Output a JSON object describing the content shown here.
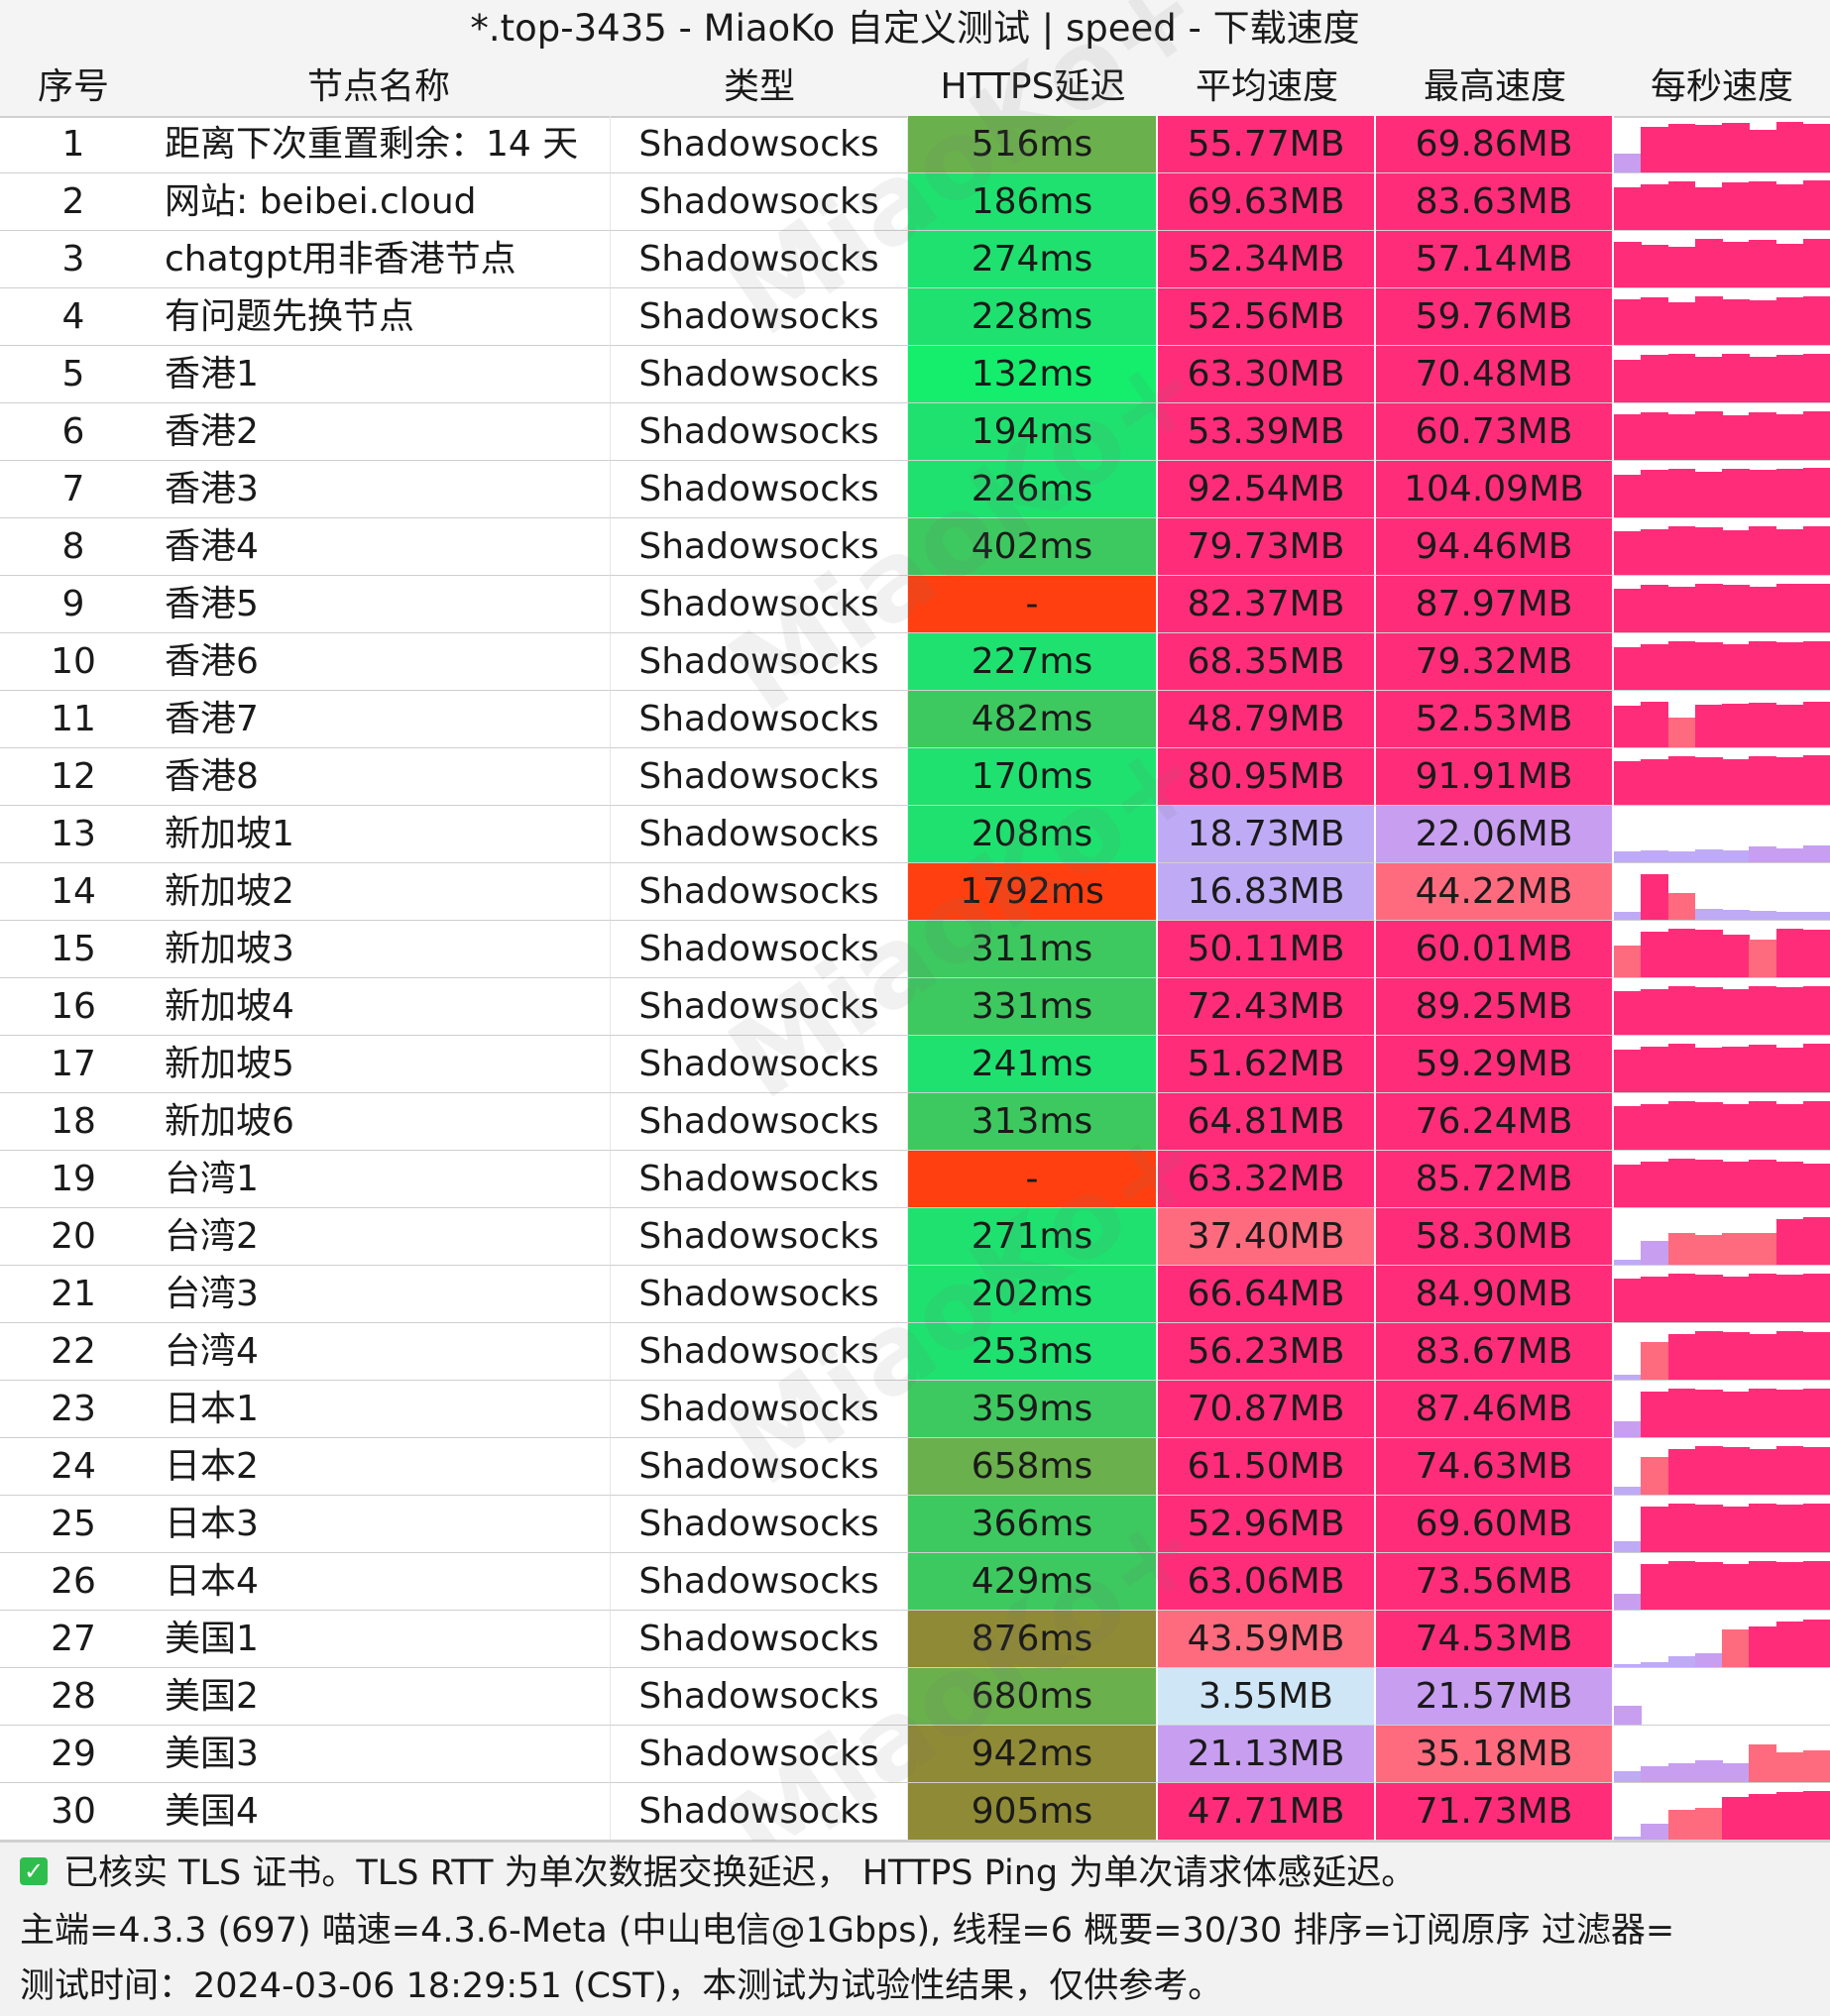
{
  "title": "*.top-3435 - MiaoKo 自定义测试 | speed - 下载速度",
  "watermark": "MiaoKo+",
  "columns": [
    "序号",
    "节点名称",
    "类型",
    "HTTPS延迟",
    "平均速度",
    "最高速度",
    "每秒速度"
  ],
  "colors": {
    "latency_good": "#1fe16f",
    "latency_ok": "#3dc95f",
    "latency_mid": "#6ab04c",
    "latency_slow": "#8f8a35",
    "latency_fail": "#ff3f0f",
    "speed_high": "#ff2d79",
    "speed_mid": "#ff6b7e",
    "speed_low": "#c89ef0",
    "speed_lower": "#bfaaf5",
    "speed_lowest": "#cfe6f7"
  },
  "rows": [
    {
      "idx": "1",
      "name": "距离下次重置剩余：14 天",
      "type": "Shadowsocks",
      "latency": "516ms",
      "avg": "55.77MB",
      "max": "69.86MB",
      "lat_color": "#6ab04c",
      "avg_color": "#ff2d79",
      "max_color": "#ff2d79",
      "spark": [
        0.35,
        0.85,
        0.9,
        0.88,
        0.92,
        0.8,
        0.95,
        0.9
      ]
    },
    {
      "idx": "2",
      "name": "网站: beibei.cloud",
      "type": "Shadowsocks",
      "latency": "186ms",
      "avg": "69.63MB",
      "max": "83.63MB",
      "lat_color": "#1fe16f",
      "avg_color": "#ff2d79",
      "max_color": "#ff2d79",
      "spark": [
        0.8,
        0.85,
        0.9,
        0.8,
        0.88,
        0.9,
        0.86,
        0.92
      ]
    },
    {
      "idx": "3",
      "name": "chatgpt用非香港节点",
      "type": "Shadowsocks",
      "latency": "274ms",
      "avg": "52.34MB",
      "max": "57.14MB",
      "lat_color": "#1fe16f",
      "avg_color": "#ff2d79",
      "max_color": "#ff2d79",
      "spark": [
        0.85,
        0.8,
        0.75,
        0.9,
        0.85,
        0.88,
        0.82,
        0.9
      ]
    },
    {
      "idx": "4",
      "name": "有问题先换节点",
      "type": "Shadowsocks",
      "latency": "228ms",
      "avg": "52.56MB",
      "max": "59.76MB",
      "lat_color": "#1fe16f",
      "avg_color": "#ff2d79",
      "max_color": "#ff2d79",
      "spark": [
        0.85,
        0.88,
        0.8,
        0.9,
        0.86,
        0.84,
        0.88,
        0.9
      ]
    },
    {
      "idx": "5",
      "name": "香港1",
      "type": "Shadowsocks",
      "latency": "132ms",
      "avg": "63.30MB",
      "max": "70.48MB",
      "lat_color": "#14ee6c",
      "avg_color": "#ff2d79",
      "max_color": "#ff2d79",
      "spark": [
        0.8,
        0.88,
        0.9,
        0.85,
        0.9,
        0.86,
        0.88,
        0.9
      ]
    },
    {
      "idx": "6",
      "name": "香港2",
      "type": "Shadowsocks",
      "latency": "194ms",
      "avg": "53.39MB",
      "max": "60.73MB",
      "lat_color": "#1fe16f",
      "avg_color": "#ff2d79",
      "max_color": "#ff2d79",
      "spark": [
        0.85,
        0.88,
        0.86,
        0.9,
        0.84,
        0.88,
        0.86,
        0.9
      ]
    },
    {
      "idx": "7",
      "name": "香港3",
      "type": "Shadowsocks",
      "latency": "226ms",
      "avg": "92.54MB",
      "max": "104.09MB",
      "lat_color": "#1fe16f",
      "avg_color": "#ff2d79",
      "max_color": "#ff2d79",
      "spark": [
        0.8,
        0.88,
        0.9,
        0.86,
        0.9,
        0.88,
        0.9,
        0.92
      ]
    },
    {
      "idx": "8",
      "name": "香港4",
      "type": "Shadowsocks",
      "latency": "402ms",
      "avg": "79.73MB",
      "max": "94.46MB",
      "lat_color": "#3dc95f",
      "avg_color": "#ff2d79",
      "max_color": "#ff2d79",
      "spark": [
        0.82,
        0.86,
        0.9,
        0.88,
        0.84,
        0.9,
        0.86,
        0.9
      ]
    },
    {
      "idx": "9",
      "name": "香港5",
      "type": "Shadowsocks",
      "latency": "-",
      "avg": "82.37MB",
      "max": "87.97MB",
      "lat_color": "#ff3f0f",
      "avg_color": "#ff2d79",
      "max_color": "#ff2d79",
      "spark": [
        0.82,
        0.88,
        0.86,
        0.9,
        0.88,
        0.86,
        0.9,
        0.9
      ]
    },
    {
      "idx": "10",
      "name": "香港6",
      "type": "Shadowsocks",
      "latency": "227ms",
      "avg": "68.35MB",
      "max": "79.32MB",
      "lat_color": "#1fe16f",
      "avg_color": "#ff2d79",
      "max_color": "#ff2d79",
      "spark": [
        0.8,
        0.86,
        0.9,
        0.88,
        0.86,
        0.9,
        0.88,
        0.9
      ]
    },
    {
      "idx": "11",
      "name": "香港7",
      "type": "Shadowsocks",
      "latency": "482ms",
      "avg": "48.79MB",
      "max": "52.53MB",
      "lat_color": "#3dc95f",
      "avg_color": "#ff2d79",
      "max_color": "#ff2d79",
      "spark": [
        0.78,
        0.85,
        0.55,
        0.8,
        0.82,
        0.84,
        0.8,
        0.86
      ]
    },
    {
      "idx": "12",
      "name": "香港8",
      "type": "Shadowsocks",
      "latency": "170ms",
      "avg": "80.95MB",
      "max": "91.91MB",
      "lat_color": "#1fe16f",
      "avg_color": "#ff2d79",
      "max_color": "#ff2d79",
      "spark": [
        0.82,
        0.86,
        0.9,
        0.88,
        0.86,
        0.9,
        0.88,
        0.92
      ]
    },
    {
      "idx": "13",
      "name": "新加坡1",
      "type": "Shadowsocks",
      "latency": "208ms",
      "avg": "18.73MB",
      "max": "22.06MB",
      "lat_color": "#1fe16f",
      "avg_color": "#bfaaf5",
      "max_color": "#c89ef0",
      "spark": [
        0.2,
        0.22,
        0.2,
        0.24,
        0.22,
        0.3,
        0.26,
        0.32
      ]
    },
    {
      "idx": "14",
      "name": "新加坡2",
      "type": "Shadowsocks",
      "latency": "1792ms",
      "avg": "16.83MB",
      "max": "44.22MB",
      "lat_color": "#ff3f0f",
      "avg_color": "#bfaaf5",
      "max_color": "#ff6b7e",
      "spark": [
        0.15,
        0.85,
        0.5,
        0.2,
        0.18,
        0.16,
        0.15,
        0.14
      ]
    },
    {
      "idx": "15",
      "name": "新加坡3",
      "type": "Shadowsocks",
      "latency": "311ms",
      "avg": "50.11MB",
      "max": "60.01MB",
      "lat_color": "#3dc95f",
      "avg_color": "#ff2d79",
      "max_color": "#ff2d79",
      "spark": [
        0.6,
        0.86,
        0.9,
        0.88,
        0.8,
        0.7,
        0.9,
        0.88
      ]
    },
    {
      "idx": "16",
      "name": "新加坡4",
      "type": "Shadowsocks",
      "latency": "331ms",
      "avg": "72.43MB",
      "max": "89.25MB",
      "lat_color": "#3dc95f",
      "avg_color": "#ff2d79",
      "max_color": "#ff2d79",
      "spark": [
        0.82,
        0.86,
        0.9,
        0.88,
        0.86,
        0.9,
        0.88,
        0.9
      ]
    },
    {
      "idx": "17",
      "name": "新加坡5",
      "type": "Shadowsocks",
      "latency": "241ms",
      "avg": "51.62MB",
      "max": "59.29MB",
      "lat_color": "#1fe16f",
      "avg_color": "#ff2d79",
      "max_color": "#ff2d79",
      "spark": [
        0.8,
        0.86,
        0.9,
        0.84,
        0.86,
        0.88,
        0.84,
        0.9
      ]
    },
    {
      "idx": "18",
      "name": "新加坡6",
      "type": "Shadowsocks",
      "latency": "313ms",
      "avg": "64.81MB",
      "max": "76.24MB",
      "lat_color": "#3dc95f",
      "avg_color": "#ff2d79",
      "max_color": "#ff2d79",
      "spark": [
        0.82,
        0.86,
        0.9,
        0.88,
        0.86,
        0.9,
        0.86,
        0.9
      ]
    },
    {
      "idx": "19",
      "name": "台湾1",
      "type": "Shadowsocks",
      "latency": "-",
      "avg": "63.32MB",
      "max": "85.72MB",
      "lat_color": "#ff3f0f",
      "avg_color": "#ff2d79",
      "max_color": "#ff2d79",
      "spark": [
        0.8,
        0.86,
        0.9,
        0.88,
        0.86,
        0.88,
        0.86,
        0.82
      ]
    },
    {
      "idx": "20",
      "name": "台湾2",
      "type": "Shadowsocks",
      "latency": "271ms",
      "avg": "37.40MB",
      "max": "58.30MB",
      "lat_color": "#1fe16f",
      "avg_color": "#ff6b7e",
      "max_color": "#ff2d79",
      "spark": [
        0.1,
        0.45,
        0.6,
        0.55,
        0.6,
        0.6,
        0.85,
        0.88
      ]
    },
    {
      "idx": "21",
      "name": "台湾3",
      "type": "Shadowsocks",
      "latency": "202ms",
      "avg": "66.64MB",
      "max": "84.90MB",
      "lat_color": "#1fe16f",
      "avg_color": "#ff2d79",
      "max_color": "#ff2d79",
      "spark": [
        0.82,
        0.86,
        0.9,
        0.88,
        0.86,
        0.9,
        0.88,
        0.9
      ]
    },
    {
      "idx": "22",
      "name": "台湾4",
      "type": "Shadowsocks",
      "latency": "253ms",
      "avg": "56.23MB",
      "max": "83.67MB",
      "lat_color": "#1fe16f",
      "avg_color": "#ff2d79",
      "max_color": "#ff2d79",
      "spark": [
        0.1,
        0.7,
        0.85,
        0.9,
        0.88,
        0.86,
        0.9,
        0.88
      ]
    },
    {
      "idx": "23",
      "name": "日本1",
      "type": "Shadowsocks",
      "latency": "359ms",
      "avg": "70.87MB",
      "max": "87.46MB",
      "lat_color": "#3dc95f",
      "avg_color": "#ff2d79",
      "max_color": "#ff2d79",
      "spark": [
        0.3,
        0.86,
        0.9,
        0.88,
        0.86,
        0.9,
        0.88,
        0.9
      ]
    },
    {
      "idx": "24",
      "name": "日本2",
      "type": "Shadowsocks",
      "latency": "658ms",
      "avg": "61.50MB",
      "max": "74.63MB",
      "lat_color": "#6ab04c",
      "avg_color": "#ff2d79",
      "max_color": "#ff2d79",
      "spark": [
        0.15,
        0.7,
        0.85,
        0.9,
        0.88,
        0.86,
        0.9,
        0.88
      ]
    },
    {
      "idx": "25",
      "name": "日本3",
      "type": "Shadowsocks",
      "latency": "366ms",
      "avg": "52.96MB",
      "max": "69.60MB",
      "lat_color": "#3dc95f",
      "avg_color": "#ff2d79",
      "max_color": "#ff2d79",
      "spark": [
        0.2,
        0.86,
        0.9,
        0.88,
        0.86,
        0.9,
        0.88,
        0.9
      ]
    },
    {
      "idx": "26",
      "name": "日本4",
      "type": "Shadowsocks",
      "latency": "429ms",
      "avg": "63.06MB",
      "max": "73.56MB",
      "lat_color": "#3dc95f",
      "avg_color": "#ff2d79",
      "max_color": "#ff2d79",
      "spark": [
        0.3,
        0.86,
        0.9,
        0.88,
        0.86,
        0.9,
        0.88,
        0.9
      ]
    },
    {
      "idx": "27",
      "name": "美国1",
      "type": "Shadowsocks",
      "latency": "876ms",
      "avg": "43.59MB",
      "max": "74.53MB",
      "lat_color": "#8f8a35",
      "avg_color": "#ff6b7e",
      "max_color": "#ff2d79",
      "spark": [
        0.05,
        0.1,
        0.2,
        0.25,
        0.7,
        0.75,
        0.85,
        0.88
      ]
    },
    {
      "idx": "28",
      "name": "美国2",
      "type": "Shadowsocks",
      "latency": "680ms",
      "avg": "3.55MB",
      "max": "21.57MB",
      "lat_color": "#6ab04c",
      "avg_color": "#cfe6f7",
      "max_color": "#c89ef0",
      "spark": [
        0.35,
        0.0,
        0.0,
        0.0,
        0.0,
        0.0,
        0.0,
        0.0
      ]
    },
    {
      "idx": "29",
      "name": "美国3",
      "type": "Shadowsocks",
      "latency": "942ms",
      "avg": "21.13MB",
      "max": "35.18MB",
      "lat_color": "#8f8a35",
      "avg_color": "#c89ef0",
      "max_color": "#ff6b7e",
      "spark": [
        0.2,
        0.3,
        0.35,
        0.4,
        0.35,
        0.7,
        0.55,
        0.6
      ]
    },
    {
      "idx": "30",
      "name": "美国4",
      "type": "Shadowsocks",
      "latency": "905ms",
      "avg": "47.71MB",
      "max": "71.73MB",
      "lat_color": "#8f8a35",
      "avg_color": "#ff2d79",
      "max_color": "#ff2d79",
      "spark": [
        0.05,
        0.3,
        0.55,
        0.6,
        0.8,
        0.85,
        0.88,
        0.9
      ]
    }
  ],
  "footer": {
    "line1": "已核实 TLS 证书。TLS RTT 为单次数据交换延迟， HTTPS Ping 为单次请求体感延迟。",
    "line2": "主端=4.3.3 (697) 喵速=4.3.6-Meta (中山电信@1Gbps), 线程=6 概要=30/30 排序=订阅原序 过滤器=",
    "line3": "测试时间：2024-03-06 18:29:51 (CST)，本测试为试验性结果，仅供参考。"
  }
}
